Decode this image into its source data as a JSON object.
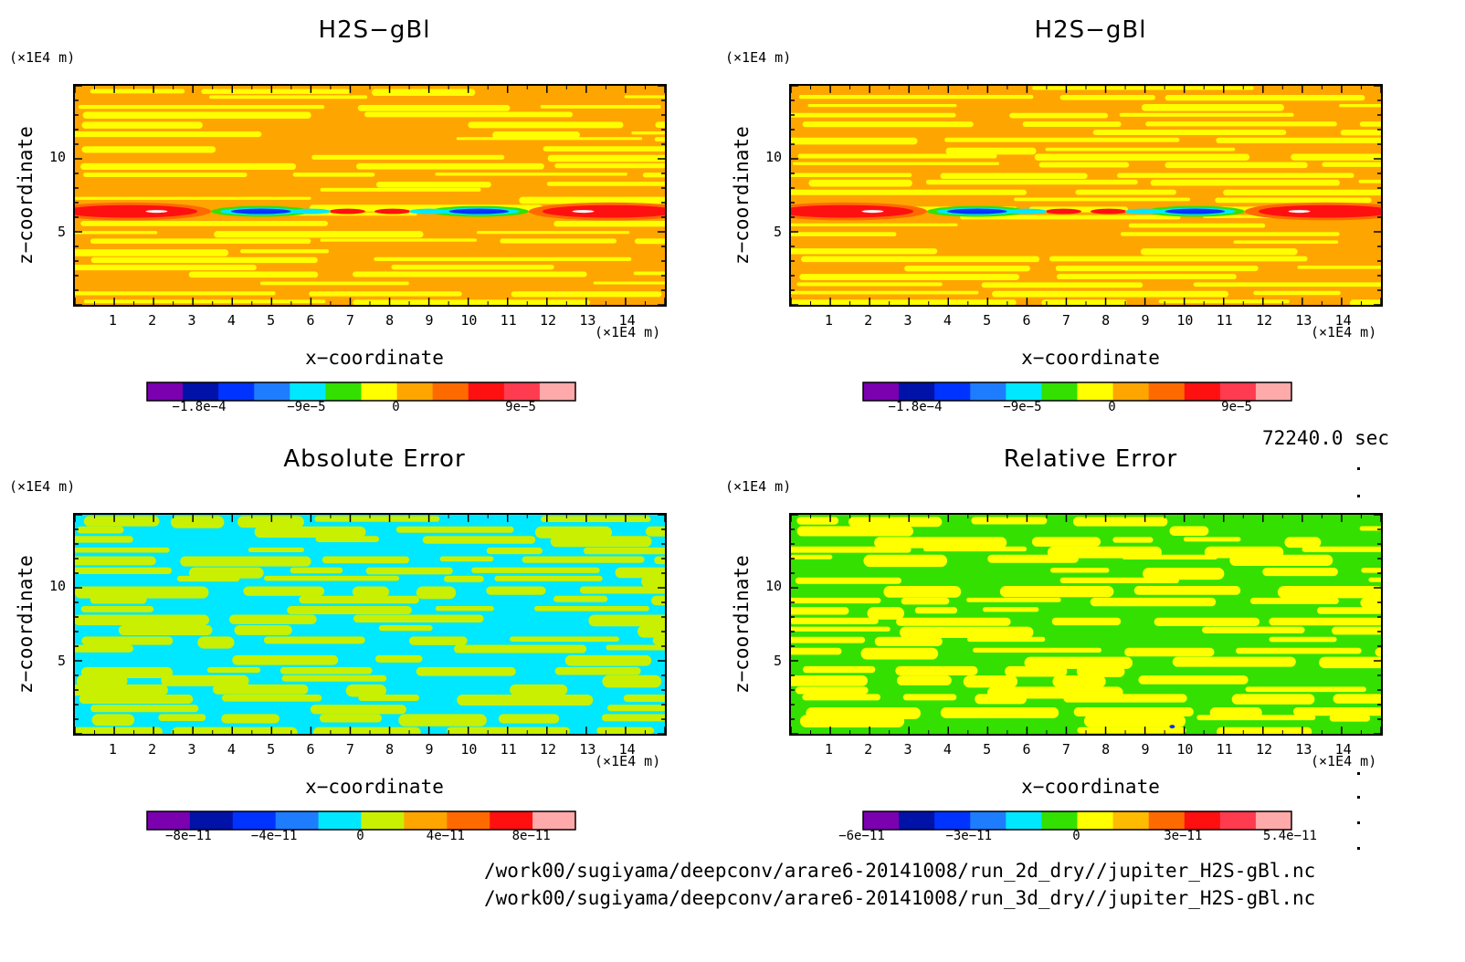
{
  "timestamp": "72240.0 sec",
  "paths": [
    "/work00/sugiyama/deepconv/arare6-20141008/run_2d_dry//jupiter_H2S-gBl.nc",
    "/work00/sugiyama/deepconv/arare6-20141008/run_3d_dry//jupiter_H2S-gBl.nc"
  ],
  "colors": {
    "purple": "#7a00b0",
    "navy": "#0012a8",
    "blue": "#0033ff",
    "mid_blue": "#1e7dff",
    "cyan": "#00e8ff",
    "green": "#33e000",
    "lime": "#c8f000",
    "yellow": "#ffff00",
    "orange_light": "#ffbb00",
    "orange": "#ffa500",
    "orange_red": "#ff6a00",
    "red": "#ff1010",
    "pink_red": "#ff3b50",
    "pink": "#ffaaaa"
  },
  "chart_data": [
    {
      "type": "heatmap",
      "title": "H2S−gBl",
      "xlabel": "x−coordinate",
      "ylabel": "z−coordinate",
      "xunit": "(×1E4 m)",
      "yunit": "(×1E4 m)",
      "xlim": [
        0,
        15
      ],
      "ylim": [
        0,
        15
      ],
      "xticks": [
        "1",
        "2",
        "3",
        "4",
        "5",
        "6",
        "7",
        "8",
        "9",
        "10",
        "11",
        "12",
        "13",
        "14"
      ],
      "yticks": [
        "5",
        "10"
      ],
      "colorbar_labels": [
        "−1.8e−4",
        "−9e−5",
        "0",
        "9e−5"
      ],
      "colorbar_colors": [
        "#7a00b0",
        "#0012a8",
        "#0033ff",
        "#1e7dff",
        "#00e8ff",
        "#33e000",
        "#ffff00",
        "#ffa500",
        "#ff6a00",
        "#ff1010",
        "#ff3b50",
        "#ffaaaa"
      ],
      "background": "#ffa500",
      "stripe_color": "#ffff00"
    },
    {
      "type": "heatmap",
      "title": "H2S−gBl",
      "xlabel": "x−coordinate",
      "ylabel": "z−coordinate",
      "xunit": "(×1E4 m)",
      "yunit": "(×1E4 m)",
      "xlim": [
        0,
        15
      ],
      "ylim": [
        0,
        15
      ],
      "xticks": [
        "1",
        "2",
        "3",
        "4",
        "5",
        "6",
        "7",
        "8",
        "9",
        "10",
        "11",
        "12",
        "13",
        "14"
      ],
      "yticks": [
        "5",
        "10"
      ],
      "colorbar_labels": [
        "−1.8e−4",
        "−9e−5",
        "0",
        "9e−5"
      ],
      "colorbar_colors": [
        "#7a00b0",
        "#0012a8",
        "#0033ff",
        "#1e7dff",
        "#00e8ff",
        "#33e000",
        "#ffff00",
        "#ffa500",
        "#ff6a00",
        "#ff1010",
        "#ff3b50",
        "#ffaaaa"
      ],
      "background": "#ffa500",
      "stripe_color": "#ffff00"
    },
    {
      "type": "heatmap",
      "title": "Absolute Error",
      "xlabel": "x−coordinate",
      "ylabel": "z−coordinate",
      "xunit": "(×1E4 m)",
      "yunit": "(×1E4 m)",
      "xlim": [
        0,
        15
      ],
      "ylim": [
        0,
        15
      ],
      "xticks": [
        "1",
        "2",
        "3",
        "4",
        "5",
        "6",
        "7",
        "8",
        "9",
        "10",
        "11",
        "12",
        "13",
        "14"
      ],
      "yticks": [
        "5",
        "10"
      ],
      "colorbar_labels": [
        "−8e−11",
        "−4e−11",
        "0",
        "4e−11",
        "8e−11"
      ],
      "colorbar_colors": [
        "#7a00b0",
        "#0012a8",
        "#0033ff",
        "#1e7dff",
        "#00e8ff",
        "#c8f000",
        "#ffa500",
        "#ff6a00",
        "#ff1010",
        "#ffaaaa"
      ],
      "background": "#00e8ff",
      "stripe_color": "#c8f000"
    },
    {
      "type": "heatmap",
      "title": "Relative Error",
      "xlabel": "x−coordinate",
      "ylabel": "z−coordinate",
      "xunit": "(×1E4 m)",
      "yunit": "(×1E4 m)",
      "xlim": [
        0,
        15
      ],
      "ylim": [
        0,
        15
      ],
      "xticks": [
        "1",
        "2",
        "3",
        "4",
        "5",
        "6",
        "7",
        "8",
        "9",
        "10",
        "11",
        "12",
        "13",
        "14"
      ],
      "yticks": [
        "5",
        "10"
      ],
      "colorbar_labels": [
        "−6e−11",
        "−3e−11",
        "0",
        "3e−11",
        "5.4e−11"
      ],
      "colorbar_colors": [
        "#7a00b0",
        "#0012a8",
        "#0033ff",
        "#1e7dff",
        "#00e8ff",
        "#33e000",
        "#ffff00",
        "#ffbb00",
        "#ff6a00",
        "#ff1010",
        "#ff3b50",
        "#ffaaaa"
      ],
      "background": "#33e000",
      "stripe_color": "#ffff00"
    }
  ]
}
